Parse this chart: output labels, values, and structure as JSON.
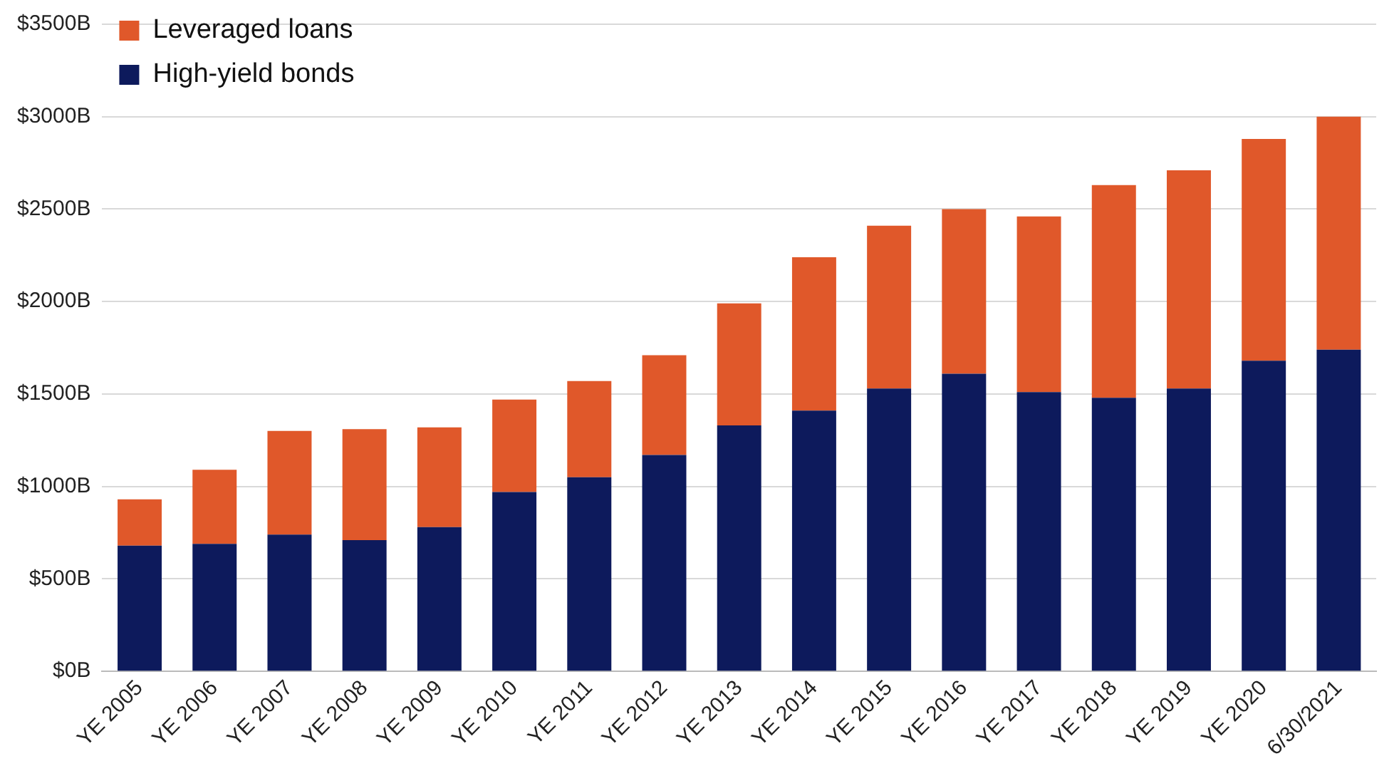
{
  "chart_data": {
    "type": "bar",
    "stacked": true,
    "categories": [
      "YE 2005",
      "YE 2006",
      "YE 2007",
      "YE 2008",
      "YE 2009",
      "YE 2010",
      "YE 2011",
      "YE 2012",
      "YE 2013",
      "YE 2014",
      "YE 2015",
      "YE 2016",
      "YE 2017",
      "YE 2018",
      "YE 2019",
      "YE 2020",
      "6/30/2021"
    ],
    "series": [
      {
        "name": "High-yield bonds",
        "color": "#0d1a5c",
        "values": [
          680,
          690,
          740,
          710,
          780,
          970,
          1050,
          1170,
          1330,
          1410,
          1530,
          1610,
          1510,
          1480,
          1530,
          1680,
          1740
        ]
      },
      {
        "name": "Leveraged loans",
        "color": "#e0582a",
        "values": [
          250,
          400,
          560,
          600,
          540,
          500,
          520,
          540,
          660,
          830,
          880,
          890,
          950,
          1150,
          1180,
          1200,
          1260
        ]
      }
    ],
    "ylim": [
      0,
      3500
    ],
    "yticks": [
      {
        "value": 0,
        "label": "$0B"
      },
      {
        "value": 500,
        "label": "$500B"
      },
      {
        "value": 1000,
        "label": "$1000B"
      },
      {
        "value": 1500,
        "label": "$1500B"
      },
      {
        "value": 2000,
        "label": "$2000B"
      },
      {
        "value": 2500,
        "label": "$2500B"
      },
      {
        "value": 3000,
        "label": "$3000B"
      },
      {
        "value": 3500,
        "label": "$3500B"
      }
    ],
    "grid": "y",
    "legend": "top left"
  }
}
